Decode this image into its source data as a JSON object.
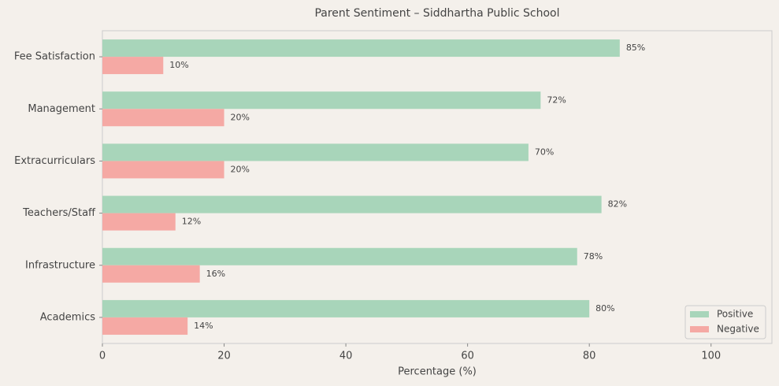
{
  "chart_data": {
    "type": "barh_grouped",
    "title": "Parent Sentiment – Siddhartha Public School",
    "xlabel": "Percentage (%)",
    "categories": [
      "Academics",
      "Infrastructure",
      "Teachers/Staff",
      "Extracurriculars",
      "Management",
      "Fee Satisfaction"
    ],
    "series": [
      {
        "name": "Positive",
        "color": "#a8d5ba",
        "values": [
          80,
          78,
          82,
          70,
          72,
          85
        ],
        "value_labels": [
          "80%",
          "78%",
          "82%",
          "70%",
          "72%",
          "85%"
        ]
      },
      {
        "name": "Negative",
        "color": "#f5a9a4",
        "values": [
          14,
          16,
          12,
          20,
          20,
          10
        ],
        "value_labels": [
          "14%",
          "16%",
          "12%",
          "20%",
          "20%",
          "10%"
        ]
      }
    ],
    "xlim": [
      0,
      110
    ],
    "xticks": [
      0,
      20,
      40,
      60,
      80,
      100
    ],
    "legend": "lower right"
  }
}
